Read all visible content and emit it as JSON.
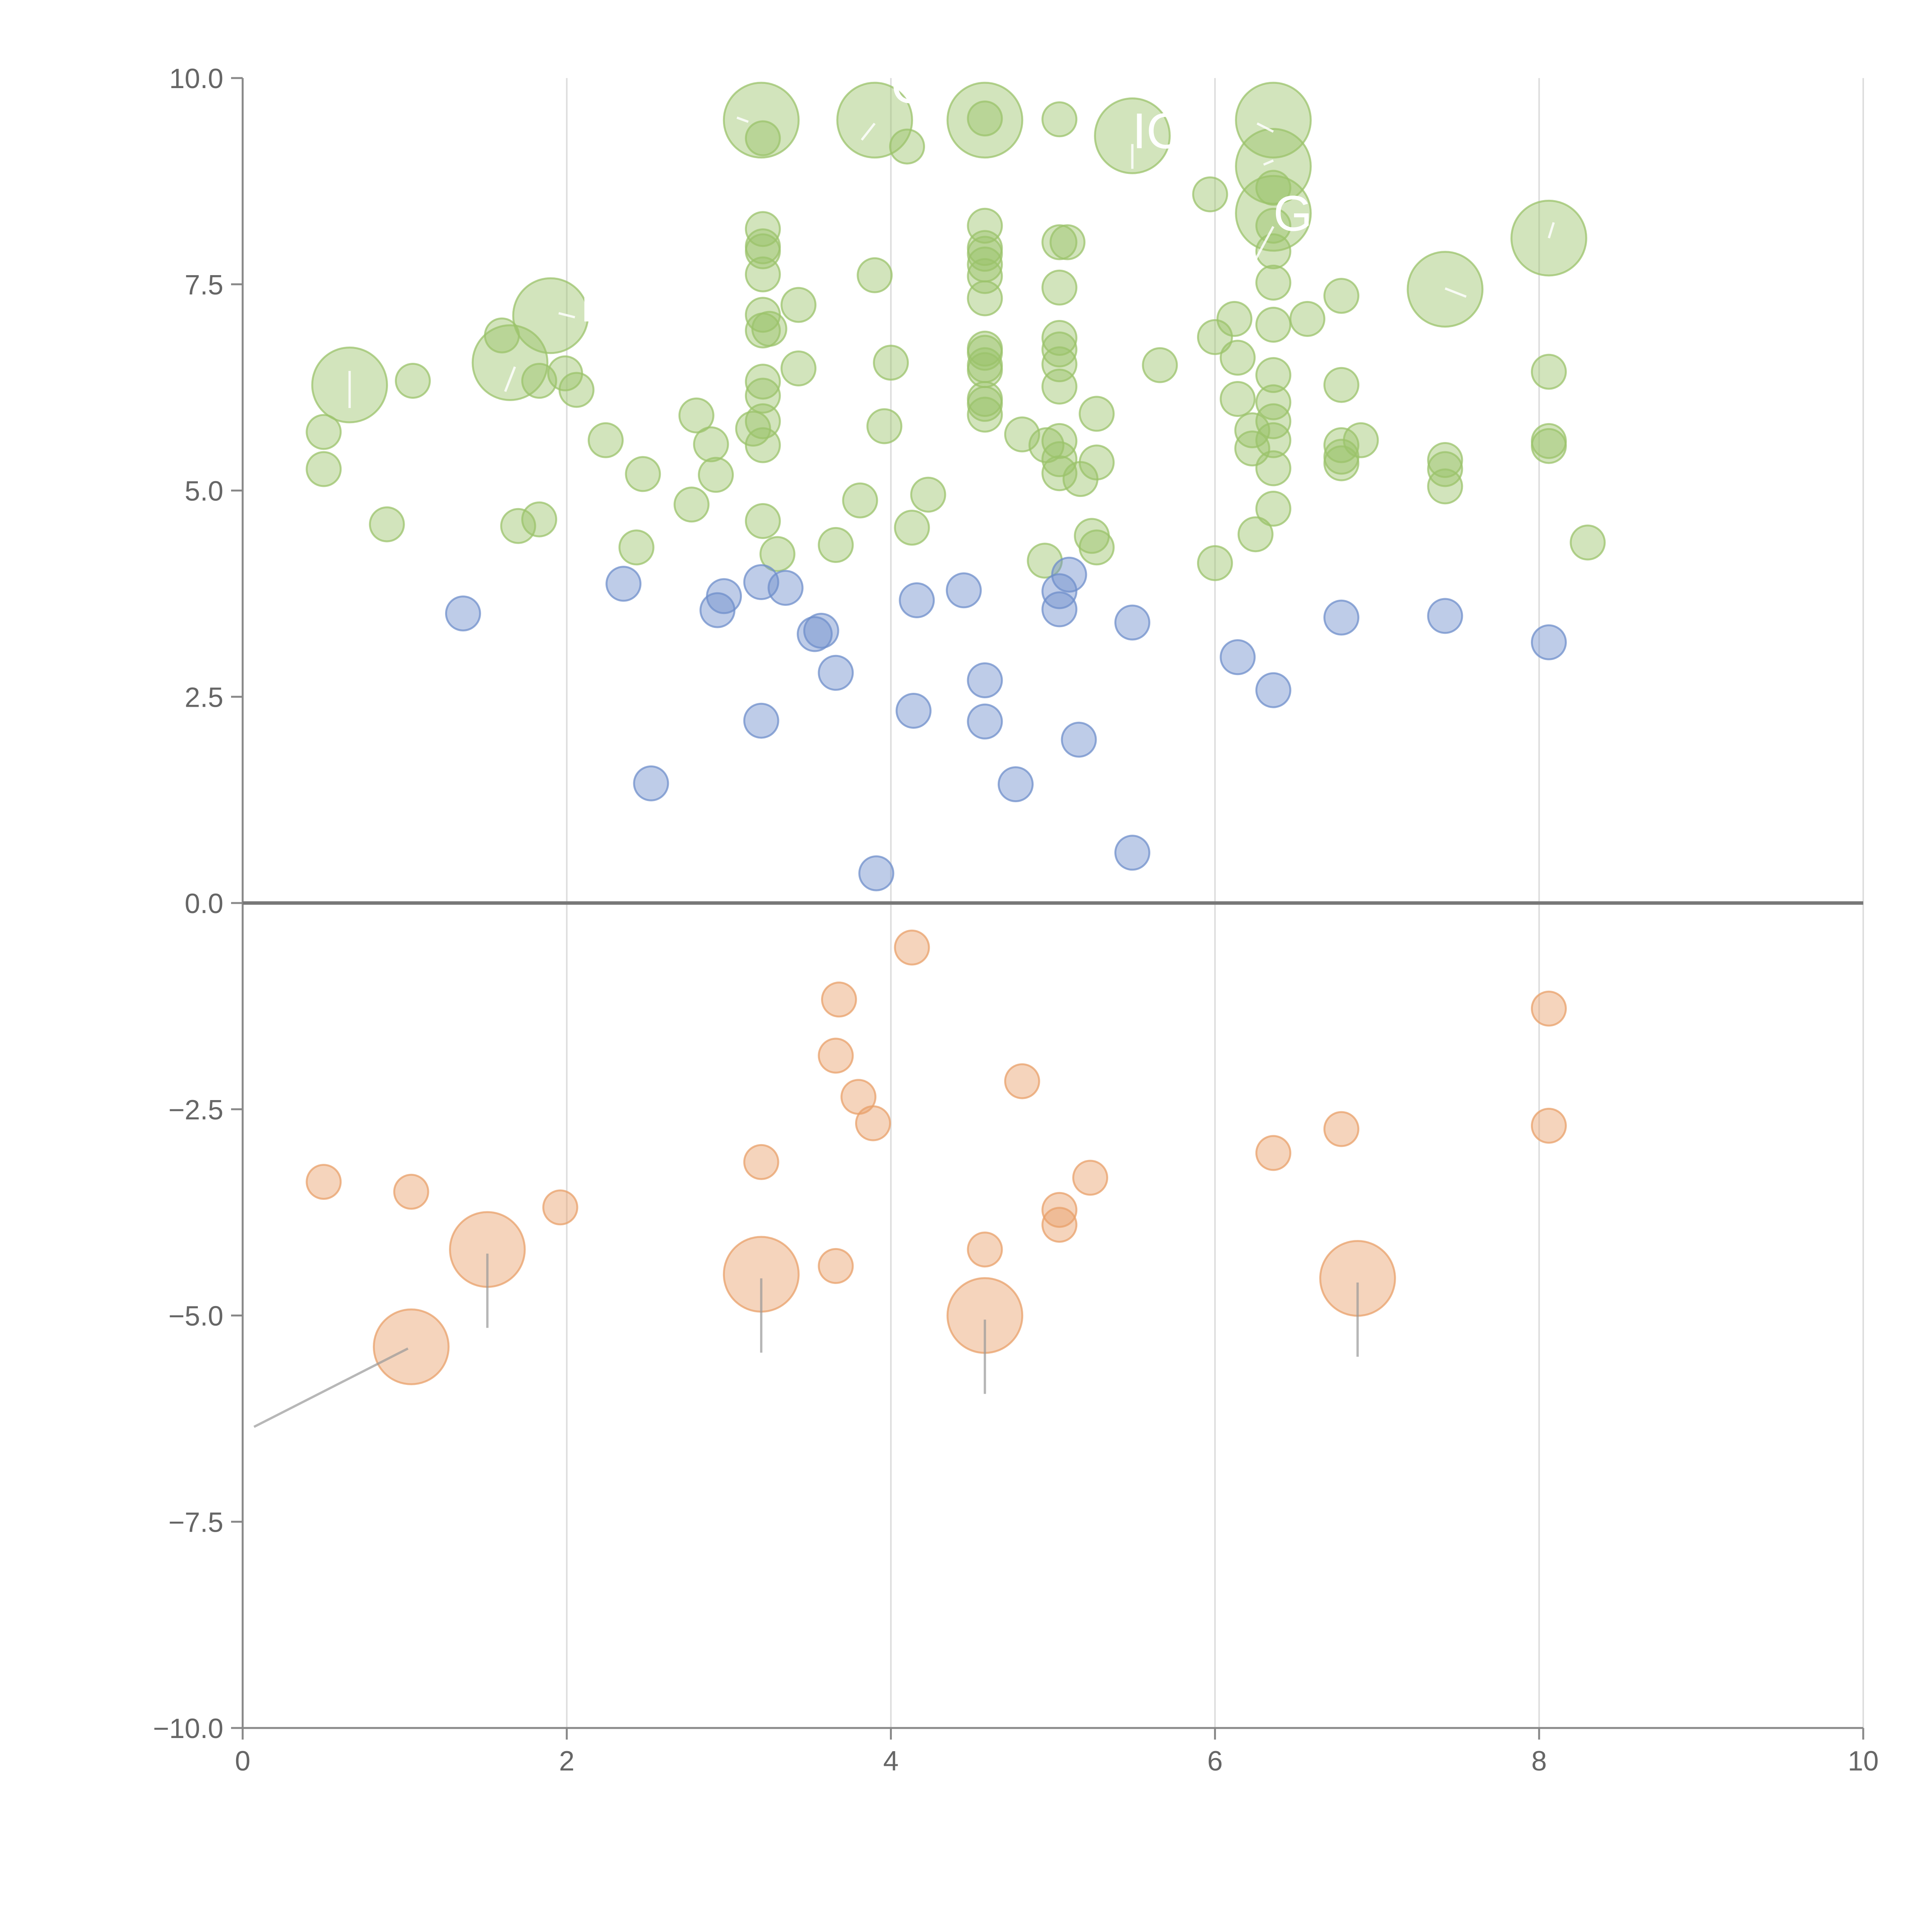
{
  "chart_data": {
    "type": "scatter",
    "title": "",
    "xlabel": "",
    "ylabel": "",
    "xlim": [
      0,
      10
    ],
    "ylim": [
      -10,
      10
    ],
    "x_ticks": [
      "0",
      "2",
      "4",
      "6",
      "8",
      "10"
    ],
    "y_ticks": [
      "10.0",
      "7.5",
      "5.0",
      "2.5",
      "0.0",
      "−2.5",
      "−5.0",
      "−7.5",
      "−10.0"
    ],
    "grid": "vertical lines at x ticks",
    "zero_line": true,
    "colors": {
      "green": "#9bc36b",
      "blue": "#6f8fcb",
      "orange": "#e8a06a",
      "axis": "#888888",
      "grid": "#dddddd",
      "annotation": "#ffffff"
    },
    "annotations": [
      "CP",
      "IC",
      "G",
      "I"
    ],
    "series": [
      {
        "color": "green",
        "points": [
          [
            0.66,
            6.28,
            2.2
          ],
          [
            1.05,
            6.33,
            1
          ],
          [
            0.5,
            5.71,
            1
          ],
          [
            0.5,
            5.26,
            1
          ],
          [
            0.89,
            4.59,
            1
          ],
          [
            1.6,
            6.88,
            1
          ],
          [
            1.65,
            6.55,
            2.2
          ],
          [
            1.9,
            7.12,
            2.2
          ],
          [
            1.83,
            6.33,
            1
          ],
          [
            1.99,
            6.42,
            1
          ],
          [
            2.06,
            6.22,
            1
          ],
          [
            1.7,
            4.57,
            1
          ],
          [
            1.83,
            4.65,
            1
          ],
          [
            2.24,
            5.61,
            1
          ],
          [
            2.47,
            5.2,
            1
          ],
          [
            2.43,
            4.31,
            1
          ],
          [
            2.8,
            5.91,
            1
          ],
          [
            2.89,
            5.56,
            1
          ],
          [
            2.92,
            5.19,
            1
          ],
          [
            2.77,
            4.83,
            1
          ],
          [
            3.15,
            5.75,
            1
          ],
          [
            3.2,
            9.49,
            2.2
          ],
          [
            3.21,
            9.27,
            1
          ],
          [
            3.21,
            8.17,
            1
          ],
          [
            3.21,
            7.96,
            1
          ],
          [
            3.21,
            7.9,
            1
          ],
          [
            3.21,
            7.62,
            1
          ],
          [
            3.21,
            7.13,
            1
          ],
          [
            3.21,
            6.94,
            1
          ],
          [
            3.25,
            6.96,
            1
          ],
          [
            3.21,
            6.32,
            1
          ],
          [
            3.21,
            6.15,
            1
          ],
          [
            3.21,
            5.84,
            1
          ],
          [
            3.21,
            5.55,
            1
          ],
          [
            3.21,
            4.63,
            1
          ],
          [
            3.3,
            4.23,
            1
          ],
          [
            3.43,
            7.25,
            1
          ],
          [
            3.43,
            6.48,
            1
          ],
          [
            3.66,
            4.34,
            1
          ],
          [
            3.81,
            4.88,
            1
          ],
          [
            3.9,
            9.49,
            2.2
          ],
          [
            3.9,
            7.61,
            1
          ],
          [
            4.1,
            9.17,
            1
          ],
          [
            4.0,
            6.55,
            1
          ],
          [
            3.96,
            5.78,
            1
          ],
          [
            4.13,
            4.55,
            1
          ],
          [
            4.23,
            4.95,
            1
          ],
          [
            4.58,
            9.49,
            2.2
          ],
          [
            4.58,
            9.51,
            1
          ],
          [
            4.58,
            8.21,
            1
          ],
          [
            4.58,
            7.94,
            1
          ],
          [
            4.58,
            7.87,
            1
          ],
          [
            4.58,
            7.74,
            1
          ],
          [
            4.58,
            7.6,
            1
          ],
          [
            4.58,
            7.33,
            1
          ],
          [
            4.58,
            6.72,
            1
          ],
          [
            4.58,
            6.67,
            1
          ],
          [
            4.58,
            6.52,
            1
          ],
          [
            4.58,
            6.46,
            1
          ],
          [
            4.58,
            6.11,
            1
          ],
          [
            4.58,
            6.05,
            1
          ],
          [
            4.58,
            5.92,
            1
          ],
          [
            4.81,
            5.68,
            1
          ],
          [
            5.04,
            9.5,
            1
          ],
          [
            5.04,
            8.01,
            1
          ],
          [
            5.09,
            8.01,
            1
          ],
          [
            5.04,
            7.46,
            1
          ],
          [
            5.04,
            6.85,
            1
          ],
          [
            5.04,
            6.71,
            1
          ],
          [
            5.04,
            6.53,
            1
          ],
          [
            5.04,
            6.26,
            1
          ],
          [
            5.04,
            5.6,
            1
          ],
          [
            4.96,
            5.55,
            1
          ],
          [
            5.04,
            5.38,
            1
          ],
          [
            5.04,
            5.21,
            1
          ],
          [
            5.17,
            5.14,
            1
          ],
          [
            5.27,
            5.93,
            1
          ],
          [
            5.27,
            5.34,
            1
          ],
          [
            5.24,
            4.45,
            1
          ],
          [
            5.27,
            4.31,
            1
          ],
          [
            4.95,
            4.15,
            1
          ],
          [
            5.49,
            9.3,
            2.2
          ],
          [
            5.66,
            6.52,
            1
          ],
          [
            5.97,
            8.59,
            1
          ],
          [
            6.0,
            6.86,
            1
          ],
          [
            6.0,
            4.12,
            1
          ],
          [
            6.12,
            7.08,
            1
          ],
          [
            6.14,
            6.61,
            1
          ],
          [
            6.14,
            6.11,
            1
          ],
          [
            6.23,
            5.73,
            1
          ],
          [
            6.23,
            5.51,
            1
          ],
          [
            6.25,
            4.47,
            1
          ],
          [
            6.36,
            9.49,
            2.2
          ],
          [
            6.36,
            8.93,
            2.2
          ],
          [
            6.36,
            8.36,
            2.2
          ],
          [
            6.36,
            8.67,
            1
          ],
          [
            6.36,
            8.21,
            1
          ],
          [
            6.36,
            7.9,
            1
          ],
          [
            6.36,
            7.52,
            1
          ],
          [
            6.36,
            7.01,
            1
          ],
          [
            6.36,
            6.4,
            1
          ],
          [
            6.36,
            6.07,
            1
          ],
          [
            6.36,
            5.84,
            1
          ],
          [
            6.36,
            5.61,
            1
          ],
          [
            6.36,
            5.27,
            1
          ],
          [
            6.36,
            4.78,
            1
          ],
          [
            6.57,
            7.08,
            1
          ],
          [
            6.78,
            7.36,
            1
          ],
          [
            6.78,
            6.28,
            1
          ],
          [
            6.78,
            5.55,
            1
          ],
          [
            6.78,
            5.41,
            1
          ],
          [
            6.78,
            5.33,
            1
          ],
          [
            6.9,
            5.61,
            1
          ],
          [
            7.42,
            7.44,
            2.2
          ],
          [
            7.42,
            5.37,
            1
          ],
          [
            7.42,
            5.26,
            1
          ],
          [
            7.42,
            5.05,
            1
          ],
          [
            8.06,
            8.06,
            2.2
          ],
          [
            8.06,
            6.44,
            1
          ],
          [
            8.06,
            5.6,
            1
          ],
          [
            8.06,
            5.54,
            1
          ],
          [
            8.3,
            4.37,
            1
          ]
        ]
      },
      {
        "color": "blue",
        "points": [
          [
            1.36,
            3.51,
            1
          ],
          [
            2.35,
            3.87,
            1
          ],
          [
            2.93,
            3.55,
            1
          ],
          [
            2.97,
            3.72,
            1
          ],
          [
            3.2,
            3.89,
            1
          ],
          [
            3.35,
            3.82,
            1
          ],
          [
            3.53,
            3.26,
            1
          ],
          [
            3.57,
            3.3,
            1
          ],
          [
            3.66,
            2.79,
            1
          ],
          [
            2.52,
            1.45,
            1
          ],
          [
            3.2,
            2.21,
            1
          ],
          [
            3.91,
            0.36,
            1
          ],
          [
            4.16,
            3.67,
            1
          ],
          [
            4.45,
            3.79,
            1
          ],
          [
            4.14,
            2.33,
            1
          ],
          [
            4.58,
            2.7,
            1
          ],
          [
            4.58,
            2.2,
            1
          ],
          [
            4.77,
            1.44,
            1
          ],
          [
            5.04,
            3.78,
            1
          ],
          [
            5.04,
            3.56,
            1
          ],
          [
            5.1,
            3.98,
            1
          ],
          [
            5.16,
            1.98,
            1
          ],
          [
            5.49,
            3.4,
            1
          ],
          [
            5.49,
            0.61,
            1
          ],
          [
            6.14,
            2.98,
            1
          ],
          [
            6.36,
            2.58,
            1
          ],
          [
            6.78,
            3.46,
            1
          ],
          [
            7.42,
            3.48,
            1
          ],
          [
            8.06,
            3.16,
            1
          ]
        ]
      },
      {
        "color": "orange",
        "points": [
          [
            0.5,
            -3.38,
            1
          ],
          [
            1.04,
            -3.5,
            1
          ],
          [
            1.04,
            -5.38,
            2.2
          ],
          [
            1.51,
            -4.2,
            2.2
          ],
          [
            1.96,
            -3.69,
            1
          ],
          [
            3.2,
            -3.14,
            1
          ],
          [
            3.2,
            -4.5,
            2.2
          ],
          [
            3.66,
            -4.4,
            1
          ],
          [
            3.66,
            -1.85,
            1
          ],
          [
            3.68,
            -1.17,
            1
          ],
          [
            3.8,
            -2.35,
            1
          ],
          [
            3.89,
            -2.67,
            1
          ],
          [
            4.13,
            -0.54,
            1
          ],
          [
            4.58,
            -4.2,
            1
          ],
          [
            4.58,
            -5.0,
            2.2
          ],
          [
            4.81,
            -2.16,
            1
          ],
          [
            5.04,
            -3.72,
            1
          ],
          [
            5.04,
            -3.9,
            1
          ],
          [
            5.23,
            -3.33,
            1
          ],
          [
            6.36,
            -3.03,
            1
          ],
          [
            6.78,
            -2.74,
            1
          ],
          [
            6.88,
            -4.55,
            2.2
          ],
          [
            8.06,
            -1.28,
            1
          ],
          [
            8.06,
            -2.7,
            1
          ]
        ]
      }
    ]
  }
}
